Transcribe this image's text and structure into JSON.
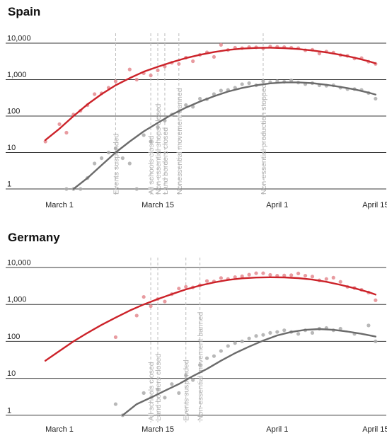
{
  "colors": {
    "cases": "#cc2229",
    "deaths": "#6b6b6b",
    "cases_dot": "#e48a8f",
    "deaths_dot": "#ababab",
    "gridline": "#3a3a3a",
    "event_line": "#bdbdbd"
  },
  "chart_data": [
    {
      "type": "scatter",
      "title": "Spain",
      "scale": "log",
      "ylim": [
        1,
        10000
      ],
      "yticks": [
        1,
        10,
        100,
        1000,
        10000
      ],
      "ytick_labels": [
        "1",
        "10",
        "100",
        "1,000",
        "10,000"
      ],
      "xlim": [
        -3,
        46
      ],
      "x_ticks": [
        0,
        14,
        31,
        45
      ],
      "x_tick_labels": [
        "March 1",
        "March 15",
        "April 1",
        "April 15"
      ],
      "grid": true,
      "events": [
        {
          "day": 8,
          "label": "Events suspended"
        },
        {
          "day": 13,
          "label": "All schools closed"
        },
        {
          "day": 14,
          "label": "Non-essential shops closed"
        },
        {
          "day": 15,
          "label": "Land borders closed"
        },
        {
          "day": 17,
          "label": "Nonessential movement banned"
        },
        {
          "day": 29,
          "label": "Non-essential production stopped"
        }
      ],
      "series": [
        {
          "points": [
            [
              -2,
              20
            ],
            [
              0,
              60
            ],
            [
              1,
              35
            ],
            [
              2,
              110
            ],
            [
              3,
              140
            ],
            [
              4,
              200
            ],
            [
              5,
              400
            ],
            [
              6,
              420
            ],
            [
              7,
              600
            ],
            [
              8,
              900
            ],
            [
              10,
              1900
            ],
            [
              11,
              1000
            ],
            [
              12,
              1500
            ],
            [
              13,
              1300
            ],
            [
              14,
              1800
            ],
            [
              15,
              2300
            ],
            [
              16,
              2900
            ],
            [
              17,
              2700
            ],
            [
              18,
              4000
            ],
            [
              19,
              3200
            ],
            [
              20,
              4800
            ],
            [
              21,
              5600
            ],
            [
              22,
              4200
            ],
            [
              23,
              9000
            ],
            [
              24,
              6500
            ],
            [
              25,
              7500
            ],
            [
              26,
              7300
            ],
            [
              27,
              7800
            ],
            [
              28,
              7700
            ],
            [
              29,
              7200
            ],
            [
              30,
              8100
            ],
            [
              31,
              7900
            ],
            [
              32,
              7800
            ],
            [
              33,
              7500
            ],
            [
              34,
              7300
            ],
            [
              35,
              6400
            ],
            [
              36,
              6600
            ],
            [
              37,
              5200
            ],
            [
              38,
              5900
            ],
            [
              39,
              5500
            ],
            [
              40,
              4700
            ],
            [
              41,
              4500
            ],
            [
              42,
              3800
            ],
            [
              43,
              3900
            ],
            [
              44,
              3100
            ],
            [
              45,
              2700
            ]
          ],
          "trend": [
            [
              -2,
              22
            ],
            [
              0,
              45
            ],
            [
              2,
              100
            ],
            [
              4,
              210
            ],
            [
              6,
              400
            ],
            [
              8,
              700
            ],
            [
              10,
              1100
            ],
            [
              12,
              1650
            ],
            [
              14,
              2250
            ],
            [
              16,
              3000
            ],
            [
              18,
              3900
            ],
            [
              20,
              4800
            ],
            [
              22,
              5700
            ],
            [
              24,
              6500
            ],
            [
              26,
              7100
            ],
            [
              28,
              7400
            ],
            [
              30,
              7500
            ],
            [
              32,
              7300
            ],
            [
              34,
              6900
            ],
            [
              36,
              6300
            ],
            [
              38,
              5600
            ],
            [
              40,
              4800
            ],
            [
              42,
              4000
            ],
            [
              44,
              3200
            ],
            [
              45,
              2800
            ]
          ]
        },
        {
          "points": [
            [
              1,
              1
            ],
            [
              2,
              1
            ],
            [
              3,
              1
            ],
            [
              4,
              2
            ],
            [
              5,
              5
            ],
            [
              6,
              7
            ],
            [
              7,
              10
            ],
            [
              8,
              13
            ],
            [
              9,
              7
            ],
            [
              10,
              5
            ],
            [
              11,
              1
            ],
            [
              12,
              30
            ],
            [
              13,
              20
            ],
            [
              14,
              50
            ],
            [
              15,
              75
            ],
            [
              16,
              110
            ],
            [
              17,
              130
            ],
            [
              18,
              200
            ],
            [
              19,
              180
            ],
            [
              20,
              300
            ],
            [
              21,
              290
            ],
            [
              22,
              400
            ],
            [
              23,
              500
            ],
            [
              24,
              520
            ],
            [
              25,
              600
            ],
            [
              26,
              750
            ],
            [
              27,
              800
            ],
            [
              28,
              700
            ],
            [
              29,
              900
            ],
            [
              30,
              850
            ],
            [
              31,
              900
            ],
            [
              32,
              870
            ],
            [
              33,
              950
            ],
            [
              34,
              830
            ],
            [
              35,
              750
            ],
            [
              36,
              800
            ],
            [
              37,
              700
            ],
            [
              38,
              680
            ],
            [
              39,
              700
            ],
            [
              40,
              600
            ],
            [
              41,
              550
            ],
            [
              42,
              550
            ],
            [
              43,
              520
            ],
            [
              44,
              430
            ],
            [
              45,
              300
            ]
          ],
          "trend": [
            [
              2,
              1
            ],
            [
              4,
              2
            ],
            [
              6,
              4.5
            ],
            [
              8,
              10
            ],
            [
              10,
              20
            ],
            [
              12,
              38
            ],
            [
              14,
              65
            ],
            [
              16,
              110
            ],
            [
              18,
              170
            ],
            [
              20,
              250
            ],
            [
              22,
              350
            ],
            [
              24,
              470
            ],
            [
              26,
              590
            ],
            [
              28,
              700
            ],
            [
              30,
              790
            ],
            [
              32,
              840
            ],
            [
              34,
              840
            ],
            [
              36,
              800
            ],
            [
              38,
              720
            ],
            [
              40,
              630
            ],
            [
              42,
              540
            ],
            [
              44,
              440
            ],
            [
              45,
              390
            ]
          ]
        }
      ]
    },
    {
      "type": "scatter",
      "title": "Germany",
      "scale": "log",
      "ylim": [
        1,
        10000
      ],
      "yticks": [
        1,
        10,
        100,
        1000,
        10000
      ],
      "ytick_labels": [
        "1",
        "10",
        "100",
        "1,000",
        "10,000"
      ],
      "xlim": [
        -3,
        46
      ],
      "x_ticks": [
        0,
        14,
        31,
        45
      ],
      "x_tick_labels": [
        "March 1",
        "March 15",
        "April 1",
        "April 15"
      ],
      "grid": true,
      "events": [
        {
          "day": 13,
          "label": "All schools closed"
        },
        {
          "day": 14,
          "label": "Land borders closed"
        },
        {
          "day": 18,
          "label": "Events suspended"
        },
        {
          "day": 20,
          "label": "Non-essential movement banned"
        }
      ],
      "series": [
        {
          "points": [
            [
              8,
              130
            ],
            [
              11,
              500
            ],
            [
              12,
              1600
            ],
            [
              13,
              900
            ],
            [
              14,
              1400
            ],
            [
              15,
              1200
            ],
            [
              16,
              1900
            ],
            [
              17,
              2700
            ],
            [
              18,
              3000
            ],
            [
              19,
              2900
            ],
            [
              20,
              3300
            ],
            [
              21,
              4300
            ],
            [
              22,
              4200
            ],
            [
              23,
              5200
            ],
            [
              24,
              4900
            ],
            [
              25,
              5500
            ],
            [
              26,
              5800
            ],
            [
              27,
              6400
            ],
            [
              28,
              7000
            ],
            [
              29,
              7000
            ],
            [
              30,
              6300
            ],
            [
              31,
              6000
            ],
            [
              32,
              6100
            ],
            [
              33,
              6200
            ],
            [
              34,
              6900
            ],
            [
              35,
              6000
            ],
            [
              36,
              5700
            ],
            [
              37,
              4500
            ],
            [
              38,
              4900
            ],
            [
              39,
              5300
            ],
            [
              40,
              4100
            ],
            [
              41,
              3000
            ],
            [
              42,
              2800
            ],
            [
              43,
              2500
            ],
            [
              44,
              2100
            ],
            [
              45,
              1300
            ]
          ],
          "trend": [
            [
              -2,
              30
            ],
            [
              0,
              55
            ],
            [
              2,
              100
            ],
            [
              4,
              170
            ],
            [
              6,
              280
            ],
            [
              8,
              440
            ],
            [
              10,
              680
            ],
            [
              12,
              1000
            ],
            [
              14,
              1400
            ],
            [
              16,
              1900
            ],
            [
              18,
              2550
            ],
            [
              20,
              3250
            ],
            [
              22,
              3950
            ],
            [
              24,
              4600
            ],
            [
              26,
              5100
            ],
            [
              28,
              5350
            ],
            [
              30,
              5450
            ],
            [
              32,
              5400
            ],
            [
              34,
              5150
            ],
            [
              36,
              4700
            ],
            [
              38,
              4100
            ],
            [
              40,
              3400
            ],
            [
              42,
              2750
            ],
            [
              44,
              2150
            ],
            [
              45,
              1850
            ]
          ]
        },
        {
          "points": [
            [
              8,
              2
            ],
            [
              9,
              1
            ],
            [
              12,
              4
            ],
            [
              14,
              5
            ],
            [
              15,
              3
            ],
            [
              16,
              7
            ],
            [
              17,
              4
            ],
            [
              18,
              12
            ],
            [
              19,
              9
            ],
            [
              20,
              23
            ],
            [
              21,
              35
            ],
            [
              22,
              40
            ],
            [
              23,
              55
            ],
            [
              24,
              75
            ],
            [
              25,
              90
            ],
            [
              26,
              100
            ],
            [
              27,
              120
            ],
            [
              28,
              140
            ],
            [
              29,
              150
            ],
            [
              30,
              170
            ],
            [
              31,
              180
            ],
            [
              32,
              200
            ],
            [
              33,
              180
            ],
            [
              34,
              160
            ],
            [
              35,
              200
            ],
            [
              36,
              170
            ],
            [
              37,
              220
            ],
            [
              38,
              230
            ],
            [
              39,
              200
            ],
            [
              40,
              220
            ],
            [
              42,
              160
            ],
            [
              44,
              270
            ],
            [
              45,
              100
            ]
          ],
          "trend": [
            [
              9,
              1
            ],
            [
              11,
              2
            ],
            [
              13,
              3
            ],
            [
              15,
              4.6
            ],
            [
              17,
              7
            ],
            [
              19,
              11.5
            ],
            [
              21,
              18
            ],
            [
              23,
              30
            ],
            [
              25,
              48
            ],
            [
              27,
              72
            ],
            [
              29,
              105
            ],
            [
              31,
              145
            ],
            [
              33,
              180
            ],
            [
              35,
              205
            ],
            [
              37,
              215
            ],
            [
              39,
              205
            ],
            [
              41,
              185
            ],
            [
              43,
              160
            ],
            [
              45,
              135
            ]
          ]
        }
      ]
    }
  ]
}
